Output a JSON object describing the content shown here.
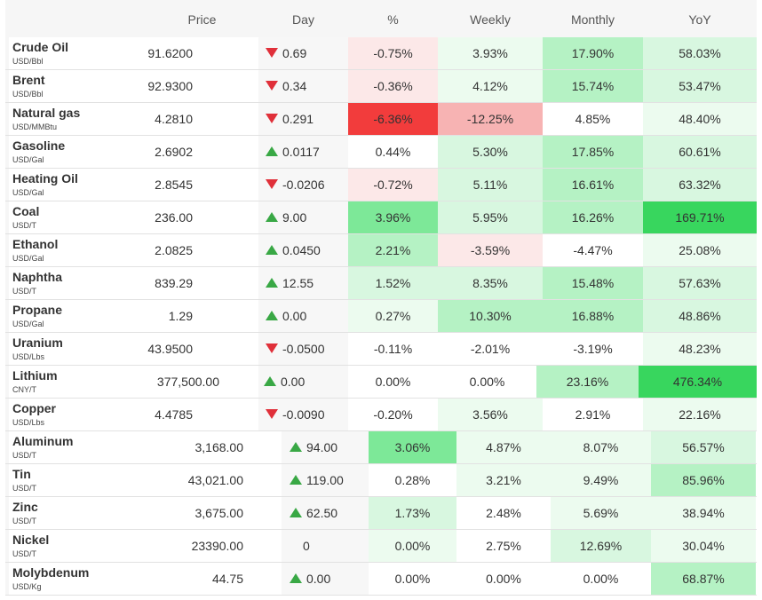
{
  "header": {
    "price": "Price",
    "day": "Day",
    "pct": "%",
    "weekly": "Weekly",
    "monthly": "Monthly",
    "yoy": "YoY"
  },
  "colors": {
    "strong_green": "#38d65e",
    "mid_green": "#7de898",
    "light_green": "#b5f2c4",
    "pale_green": "#d8f7e0",
    "faint_green": "#ecfbef",
    "strong_red": "#f23c3c",
    "light_red": "#f7b3b3",
    "pale_red": "#fce8e8",
    "down_arrow": "#e0303a",
    "up_arrow": "#39a845"
  },
  "rows": [
    {
      "name": "Crude Oil",
      "unit": "USD/Bbl",
      "price": "91.6200",
      "dir": "down",
      "day": "0.69",
      "pct": "-0.75%",
      "weekly": "3.93%",
      "monthly": "17.90%",
      "yoy": "58.03%"
    },
    {
      "name": "Brent",
      "unit": "USD/Bbl",
      "price": "92.9300",
      "dir": "down",
      "day": "0.34",
      "pct": "-0.36%",
      "weekly": "4.12%",
      "monthly": "15.74%",
      "yoy": "53.47%"
    },
    {
      "name": "Natural gas",
      "unit": "USD/MMBtu",
      "price": "4.2810",
      "dir": "down",
      "day": "0.291",
      "pct": "-6.36%",
      "weekly": "-12.25%",
      "monthly": "4.85%",
      "yoy": "48.40%"
    },
    {
      "name": "Gasoline",
      "unit": "USD/Gal",
      "price": "2.6902",
      "dir": "up",
      "day": "0.0117",
      "pct": "0.44%",
      "weekly": "5.30%",
      "monthly": "17.85%",
      "yoy": "60.61%"
    },
    {
      "name": "Heating Oil",
      "unit": "USD/Gal",
      "price": "2.8545",
      "dir": "down",
      "day": "-0.0206",
      "pct": "-0.72%",
      "weekly": "5.11%",
      "monthly": "16.61%",
      "yoy": "63.32%"
    },
    {
      "name": "Coal",
      "unit": "USD/T",
      "price": "236.00",
      "dir": "up",
      "day": "9.00",
      "pct": "3.96%",
      "weekly": "5.95%",
      "monthly": "16.26%",
      "yoy": "169.71%"
    },
    {
      "name": "Ethanol",
      "unit": "USD/Gal",
      "price": "2.0825",
      "dir": "up",
      "day": "0.0450",
      "pct": "2.21%",
      "weekly": "-3.59%",
      "monthly": "-4.47%",
      "yoy": "25.08%"
    },
    {
      "name": "Naphtha",
      "unit": "USD/T",
      "price": "839.29",
      "dir": "up",
      "day": "12.55",
      "pct": "1.52%",
      "weekly": "8.35%",
      "monthly": "15.48%",
      "yoy": "57.63%"
    },
    {
      "name": "Propane",
      "unit": "USD/Gal",
      "price": "1.29",
      "dir": "up",
      "day": "0.00",
      "pct": "0.27%",
      "weekly": "10.30%",
      "monthly": "16.88%",
      "yoy": "48.86%"
    },
    {
      "name": "Uranium",
      "unit": "USD/Lbs",
      "price": "43.9500",
      "dir": "down",
      "day": "-0.0500",
      "pct": "-0.11%",
      "weekly": "-2.01%",
      "monthly": "-3.19%",
      "yoy": "48.23%"
    },
    {
      "name": "Lithium",
      "unit": "CNY/T",
      "price": "377,500.00",
      "dir": "up",
      "day": "0.00",
      "pct": "0.00%",
      "weekly": "0.00%",
      "monthly": "23.16%",
      "yoy": "476.34%"
    },
    {
      "name": "Copper",
      "unit": "USD/Lbs",
      "price": "4.4785",
      "dir": "down",
      "day": "-0.0090",
      "pct": "-0.20%",
      "weekly": "3.56%",
      "monthly": "2.91%",
      "yoy": "22.16%"
    },
    {
      "name": "Aluminum",
      "unit": "USD/T",
      "price": "3,168.00",
      "dir": "up",
      "day": "94.00",
      "pct": "3.06%",
      "weekly": "4.87%",
      "monthly": "8.07%",
      "yoy": "56.57%"
    },
    {
      "name": "Tin",
      "unit": "USD/T",
      "price": "43,021.00",
      "dir": "up",
      "day": "119.00",
      "pct": "0.28%",
      "weekly": "3.21%",
      "monthly": "9.49%",
      "yoy": "85.96%"
    },
    {
      "name": "Zinc",
      "unit": "USD/T",
      "price": "3,675.00",
      "dir": "up",
      "day": "62.50",
      "pct": "1.73%",
      "weekly": "2.48%",
      "monthly": "5.69%",
      "yoy": "38.94%"
    },
    {
      "name": "Nickel",
      "unit": "USD/T",
      "price": "23390.00",
      "dir": "none",
      "day": "0",
      "pct": "0.00%",
      "weekly": "2.75%",
      "monthly": "12.69%",
      "yoy": "30.04%"
    },
    {
      "name": "Molybdenum",
      "unit": "USD/Kg",
      "price": "44.75",
      "dir": "up",
      "day": "0.00",
      "pct": "0.00%",
      "weekly": "0.00%",
      "monthly": "0.00%",
      "yoy": "68.87%"
    }
  ]
}
